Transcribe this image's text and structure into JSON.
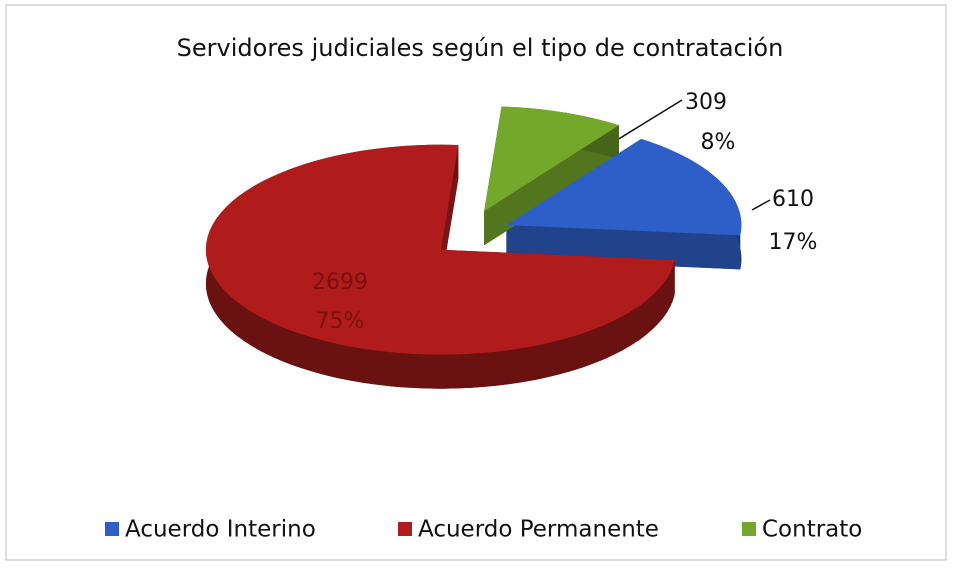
{
  "chart_data": {
    "type": "pie",
    "title": "Servidores judiciales según el tipo de contratación",
    "categories": [
      "Acuerdo Interino",
      "Acuerdo Permanente",
      "Contrato"
    ],
    "values": [
      610,
      2699,
      309
    ],
    "percentages": [
      17,
      75,
      8
    ],
    "percentage_labels": [
      "17%",
      "75%",
      "8%"
    ],
    "colors": [
      "#2e5fc8",
      "#b01c1c",
      "#74a82a"
    ],
    "legend": "bottom"
  }
}
